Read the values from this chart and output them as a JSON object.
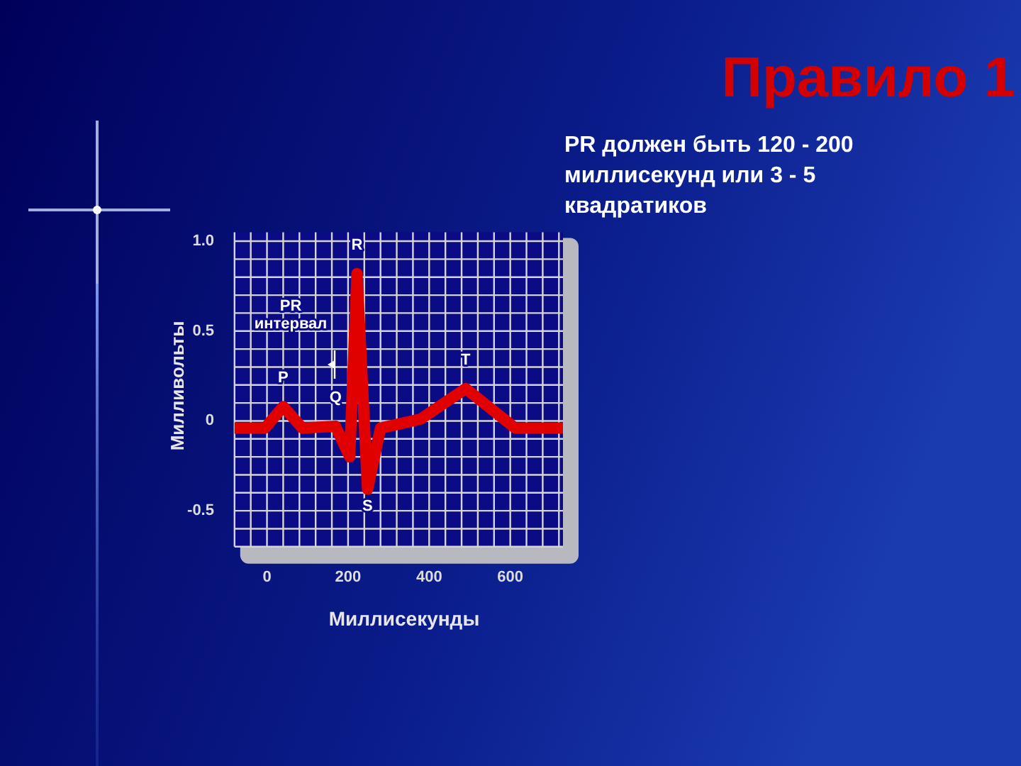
{
  "chart_data": {
    "type": "line",
    "title": "Правило 1",
    "subtitle": "PR должен быть 120 - 200 миллисекунд или 3 - 5 квадратиков",
    "xlabel": "Миллисекунды",
    "ylabel": "Милливольты",
    "x": [
      -80,
      -5,
      40,
      87,
      169,
      204,
      222,
      248,
      280,
      379,
      490,
      612,
      730
    ],
    "series": [
      {
        "color": "#e00000",
        "values": [
          -0.04,
          -0.04,
          0.08,
          -0.04,
          -0.03,
          -0.2,
          0.82,
          -0.38,
          -0.04,
          0.01,
          0.18,
          -0.04,
          -0.04
        ]
      }
    ],
    "xlim": [
      -80,
      730
    ],
    "ylim": [
      -0.7,
      1.05
    ],
    "xticks": [
      {
        "value": -80,
        "label": null
      },
      {
        "value": -40,
        "label": null
      },
      0,
      {
        "value": 40,
        "label": null
      },
      {
        "value": 80,
        "label": null
      },
      {
        "value": 120,
        "label": null
      },
      {
        "value": 160,
        "label": null
      },
      200,
      {
        "value": 240,
        "label": null
      },
      {
        "value": 280,
        "label": null
      },
      {
        "value": 320,
        "label": null
      },
      {
        "value": 360,
        "label": null
      },
      400,
      {
        "value": 440,
        "label": null
      },
      {
        "value": 480,
        "label": null
      },
      {
        "value": 520,
        "label": null
      },
      {
        "value": 560,
        "label": null
      },
      600,
      {
        "value": 640,
        "label": null
      },
      {
        "value": 680,
        "label": null
      },
      {
        "value": 720,
        "label": null
      }
    ],
    "yticks": [
      {
        "value": -0.7,
        "label": null
      },
      {
        "value": -0.6,
        "label": null
      },
      -0.5,
      {
        "value": -0.4,
        "label": null
      },
      {
        "value": -0.3,
        "label": null
      },
      {
        "value": -0.2,
        "label": null
      },
      {
        "value": -0.1,
        "label": null
      },
      0,
      {
        "value": 0.1,
        "label": null
      },
      {
        "value": 0.2,
        "label": null
      },
      {
        "value": 0.3,
        "label": null
      },
      {
        "value": 0.4,
        "label": null
      },
      0.5,
      {
        "value": 0.6,
        "label": null
      },
      {
        "value": 0.7,
        "label": null
      },
      {
        "value": 0.8,
        "label": null
      },
      {
        "value": 0.9,
        "label": null
      },
      {
        "value": 1,
        "label": "1.0"
      }
    ],
    "grid": true,
    "annotations": [
      {
        "text": "R",
        "x": 222,
        "y": 0.82
      },
      {
        "text": "S",
        "x": 248,
        "y": -0.38
      },
      {
        "text": "Q",
        "x": 169,
        "y": -0.03
      },
      {
        "text": "T",
        "x": 490,
        "y": 0.18
      },
      {
        "text": "P",
        "x": 40,
        "y": 0.08
      },
      "PR интервал"
    ]
  }
}
